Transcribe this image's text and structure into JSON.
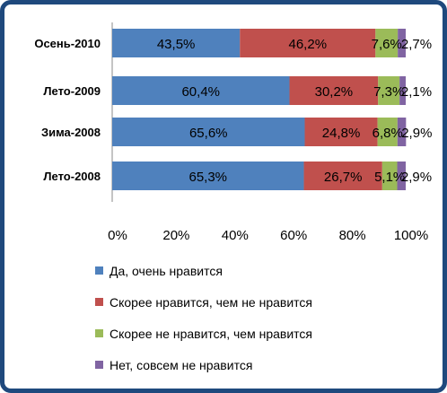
{
  "chart_data": {
    "type": "bar",
    "orientation": "horizontal",
    "stacked": true,
    "categories": [
      "Осень-2010",
      "Лето-2009",
      "Зима-2008",
      "Лето-2008"
    ],
    "series": [
      {
        "name": "Да, очень нравится",
        "color": "#4f81bd",
        "values": [
          43.5,
          60.4,
          65.6,
          65.3
        ],
        "labels": [
          "43,5%",
          "60,4%",
          "65,6%",
          "65,3%"
        ]
      },
      {
        "name": "Скорее нравится, чем не нравится",
        "color": "#c0504d",
        "values": [
          46.2,
          30.2,
          24.8,
          26.7
        ],
        "labels": [
          "46,2%",
          "30,2%",
          "24,8%",
          "26,7%"
        ]
      },
      {
        "name": "Скорее не нравится, чем нравится",
        "color": "#9bbb59",
        "values": [
          7.6,
          7.3,
          6.8,
          5.1
        ],
        "labels": [
          "7,6%",
          "7,3%",
          "6,8%",
          "5,1%"
        ]
      },
      {
        "name": "Нет, совсем не нравится",
        "color": "#8064a2",
        "values": [
          2.7,
          2.1,
          2.9,
          2.9
        ],
        "labels": [
          "2,7%",
          "2,1%",
          "2,9%",
          "2,9%"
        ]
      }
    ],
    "x_ticks": [
      "0%",
      "20%",
      "40%",
      "60%",
      "80%",
      "100%"
    ],
    "xlim": [
      0,
      100
    ],
    "grid": false,
    "legend_position": "bottom"
  }
}
